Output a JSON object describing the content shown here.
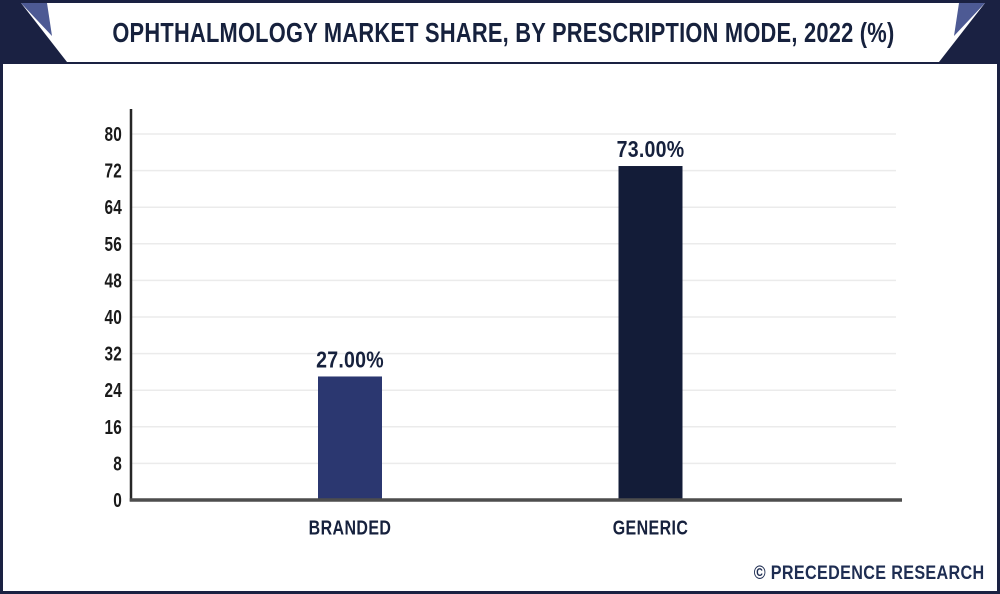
{
  "header": {
    "title": "OPHTHALMOLOGY MARKET SHARE, BY PRESCRIPTION MODE, 2022 (%)"
  },
  "watermark": {
    "text": "© PRECEDENCE RESEARCH"
  },
  "colors": {
    "accent_navy": "#1a2142",
    "accent_blue": "#4d5a94",
    "bar_branded": "#2b3770",
    "bar_generic": "#131c38",
    "x_axis_line": "#4d4d4d",
    "y_axis_line": "#262626",
    "grid_line": "#ebebeb",
    "label_navy": "#16213d",
    "tick_text": "#1a1a1a"
  },
  "chart_data": {
    "type": "bar",
    "title": "OPHTHALMOLOGY MARKET SHARE, BY PRESCRIPTION MODE, 2022 (%)",
    "categories": [
      "BRANDED",
      "GENERIC"
    ],
    "values": [
      27.0,
      73.0
    ],
    "value_labels": [
      "27.00%",
      "73.00%"
    ],
    "bar_colors": [
      "#2b3770",
      "#131c38"
    ],
    "y_ticks": [
      0,
      8,
      16,
      24,
      32,
      40,
      48,
      56,
      64,
      72,
      80
    ],
    "ylim": [
      0,
      86
    ],
    "xlabel": "",
    "ylabel": "",
    "grid": true,
    "legend": false
  }
}
